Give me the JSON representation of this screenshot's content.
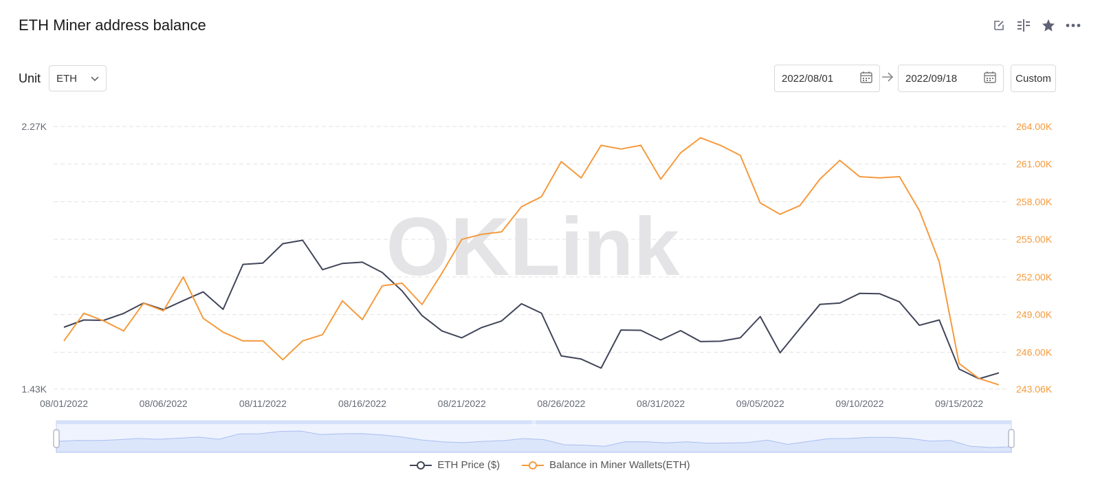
{
  "header": {
    "title": "ETH Miner address balance",
    "icons": [
      "edit-icon",
      "compare-icon",
      "star-icon",
      "more-icon"
    ]
  },
  "controls": {
    "unit_label": "Unit",
    "unit_value": "ETH",
    "date_start": "2022/08/01",
    "date_end": "2022/09/18",
    "custom_label": "Custom"
  },
  "colors": {
    "price": "#3f4458",
    "balance": "#f59a3c",
    "grid": "#e2e2e2",
    "left_axis_text": "#666a75",
    "right_axis_text": "#f59a3c",
    "slider_fill": "#dce6fb",
    "slider_border": "#c6d4f5"
  },
  "watermark": "OKLink",
  "chart_data": {
    "type": "line",
    "x": [
      "08/01/2022",
      "08/02/2022",
      "08/03/2022",
      "08/04/2022",
      "08/05/2022",
      "08/06/2022",
      "08/07/2022",
      "08/08/2022",
      "08/09/2022",
      "08/10/2022",
      "08/11/2022",
      "08/12/2022",
      "08/13/2022",
      "08/14/2022",
      "08/15/2022",
      "08/16/2022",
      "08/17/2022",
      "08/18/2022",
      "08/19/2022",
      "08/20/2022",
      "08/21/2022",
      "08/22/2022",
      "08/23/2022",
      "08/24/2022",
      "08/25/2022",
      "08/26/2022",
      "08/27/2022",
      "08/28/2022",
      "08/29/2022",
      "08/30/2022",
      "08/31/2022",
      "09/01/2022",
      "09/02/2022",
      "09/03/2022",
      "09/04/2022",
      "09/05/2022",
      "09/06/2022",
      "09/07/2022",
      "09/08/2022",
      "09/09/2022",
      "09/10/2022",
      "09/11/2022",
      "09/12/2022",
      "09/13/2022",
      "09/14/2022",
      "09/15/2022",
      "09/16/2022",
      "09/17/2022"
    ],
    "x_tick_labels": [
      "08/01/2022",
      "08/06/2022",
      "08/11/2022",
      "08/16/2022",
      "08/21/2022",
      "08/26/2022",
      "08/31/2022",
      "09/05/2022",
      "09/10/2022",
      "09/15/2022"
    ],
    "series": [
      {
        "name": "ETH Price ($)",
        "axis": "left",
        "values": [
          1628,
          1651,
          1650,
          1672,
          1705,
          1684,
          1713,
          1741,
          1685,
          1829,
          1833,
          1895,
          1906,
          1812,
          1832,
          1836,
          1803,
          1744,
          1665,
          1616,
          1594,
          1627,
          1648,
          1703,
          1673,
          1536,
          1526,
          1497,
          1619,
          1618,
          1587,
          1617,
          1582,
          1583,
          1594,
          1662,
          1546,
          1624,
          1701,
          1705,
          1736,
          1735,
          1709,
          1634,
          1651,
          1494,
          1463,
          1482
        ]
      },
      {
        "name": "Balance in Miner Wallets(ETH)",
        "axis": "right",
        "values": [
          246.9,
          249.1,
          248.5,
          247.7,
          249.9,
          249.3,
          252.0,
          248.7,
          247.6,
          246.9,
          246.9,
          245.4,
          246.9,
          247.4,
          250.1,
          248.6,
          251.3,
          251.5,
          249.8,
          252.3,
          255.0,
          255.4,
          255.6,
          257.6,
          258.4,
          261.2,
          259.9,
          262.5,
          262.2,
          262.5,
          259.8,
          261.9,
          263.1,
          262.5,
          261.7,
          257.9,
          257.0,
          257.7,
          259.8,
          261.3,
          260.0,
          259.9,
          260.0,
          257.3,
          253.2,
          245.1,
          243.9,
          243.4
        ]
      }
    ],
    "y_left": {
      "ticks": [
        "2.27K",
        "1.43K"
      ],
      "range": [
        1430,
        2270
      ]
    },
    "y_right": {
      "ticks": [
        "264.00K",
        "261.00K",
        "258.00K",
        "255.00K",
        "252.00K",
        "249.00K",
        "246.00K",
        "243.06K"
      ],
      "range": [
        243.06,
        264.0
      ],
      "unit": "K"
    },
    "grid": true,
    "legend_position": "bottom-center"
  },
  "legend": {
    "price_label": "ETH Price ($)",
    "balance_label": "Balance in Miner Wallets(ETH)"
  }
}
